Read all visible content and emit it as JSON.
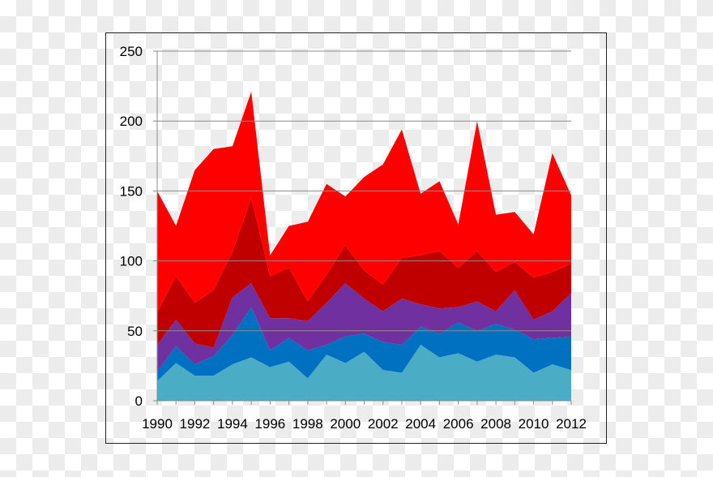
{
  "chart_data": {
    "type": "area",
    "stacked": true,
    "x": [
      1990,
      1991,
      1992,
      1993,
      1994,
      1995,
      1996,
      1997,
      1998,
      1999,
      2000,
      2001,
      2002,
      2003,
      2004,
      2005,
      2006,
      2007,
      2008,
      2009,
      2010,
      2011,
      2012
    ],
    "x_tick_labels": [
      "1990",
      "1992",
      "1994",
      "1996",
      "1998",
      "2000",
      "2002",
      "2004",
      "2006",
      "2008",
      "2010",
      "2012"
    ],
    "y_tick_labels": [
      "0",
      "50",
      "100",
      "150",
      "200",
      "250"
    ],
    "ylim": [
      0,
      250
    ],
    "grid": "horizontal",
    "series": [
      {
        "color": "#4bacc6",
        "values": [
          14,
          27,
          18,
          18,
          26,
          31,
          24,
          28,
          16,
          33,
          27,
          35,
          22,
          20,
          40,
          31,
          34,
          28,
          33,
          31,
          20,
          26,
          22
        ]
      },
      {
        "color": "#0070c0",
        "values": [
          7,
          12,
          8,
          14,
          21,
          36,
          12,
          17,
          20,
          7,
          19,
          13,
          20,
          20,
          13,
          17,
          22,
          22,
          22,
          20,
          24,
          19,
          24
        ]
      },
      {
        "color": "#7030a0",
        "values": [
          19,
          19,
          15,
          6,
          27,
          17,
          23,
          14,
          21,
          30,
          38,
          25,
          22,
          33,
          16,
          18,
          11,
          21,
          9,
          28,
          14,
          19,
          31
        ]
      },
      {
        "color": "#c00000",
        "values": [
          23,
          31,
          29,
          41,
          32,
          61,
          30,
          36,
          14,
          20,
          27,
          20,
          19,
          29,
          35,
          41,
          28,
          36,
          28,
          20,
          30,
          28,
          21
        ]
      },
      {
        "color": "#ff0000",
        "values": [
          87,
          36,
          95,
          101,
          76,
          76,
          15,
          30,
          57,
          65,
          35,
          67,
          86,
          92,
          44,
          50,
          31,
          93,
          41,
          36,
          31,
          85,
          49
        ]
      }
    ]
  }
}
